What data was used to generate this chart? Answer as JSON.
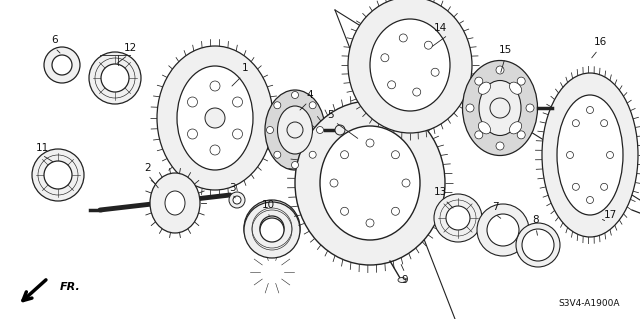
{
  "background_color": "#ffffff",
  "text_color": "#111111",
  "line_color": "#222222",
  "diagram_code": "S3V4-A1900A",
  "fr_label": "FR.",
  "fill_white": "#ffffff",
  "fill_light": "#f0f0f0",
  "fill_mid": "#d8d8d8",
  "fill_dark": "#aaaaaa"
}
